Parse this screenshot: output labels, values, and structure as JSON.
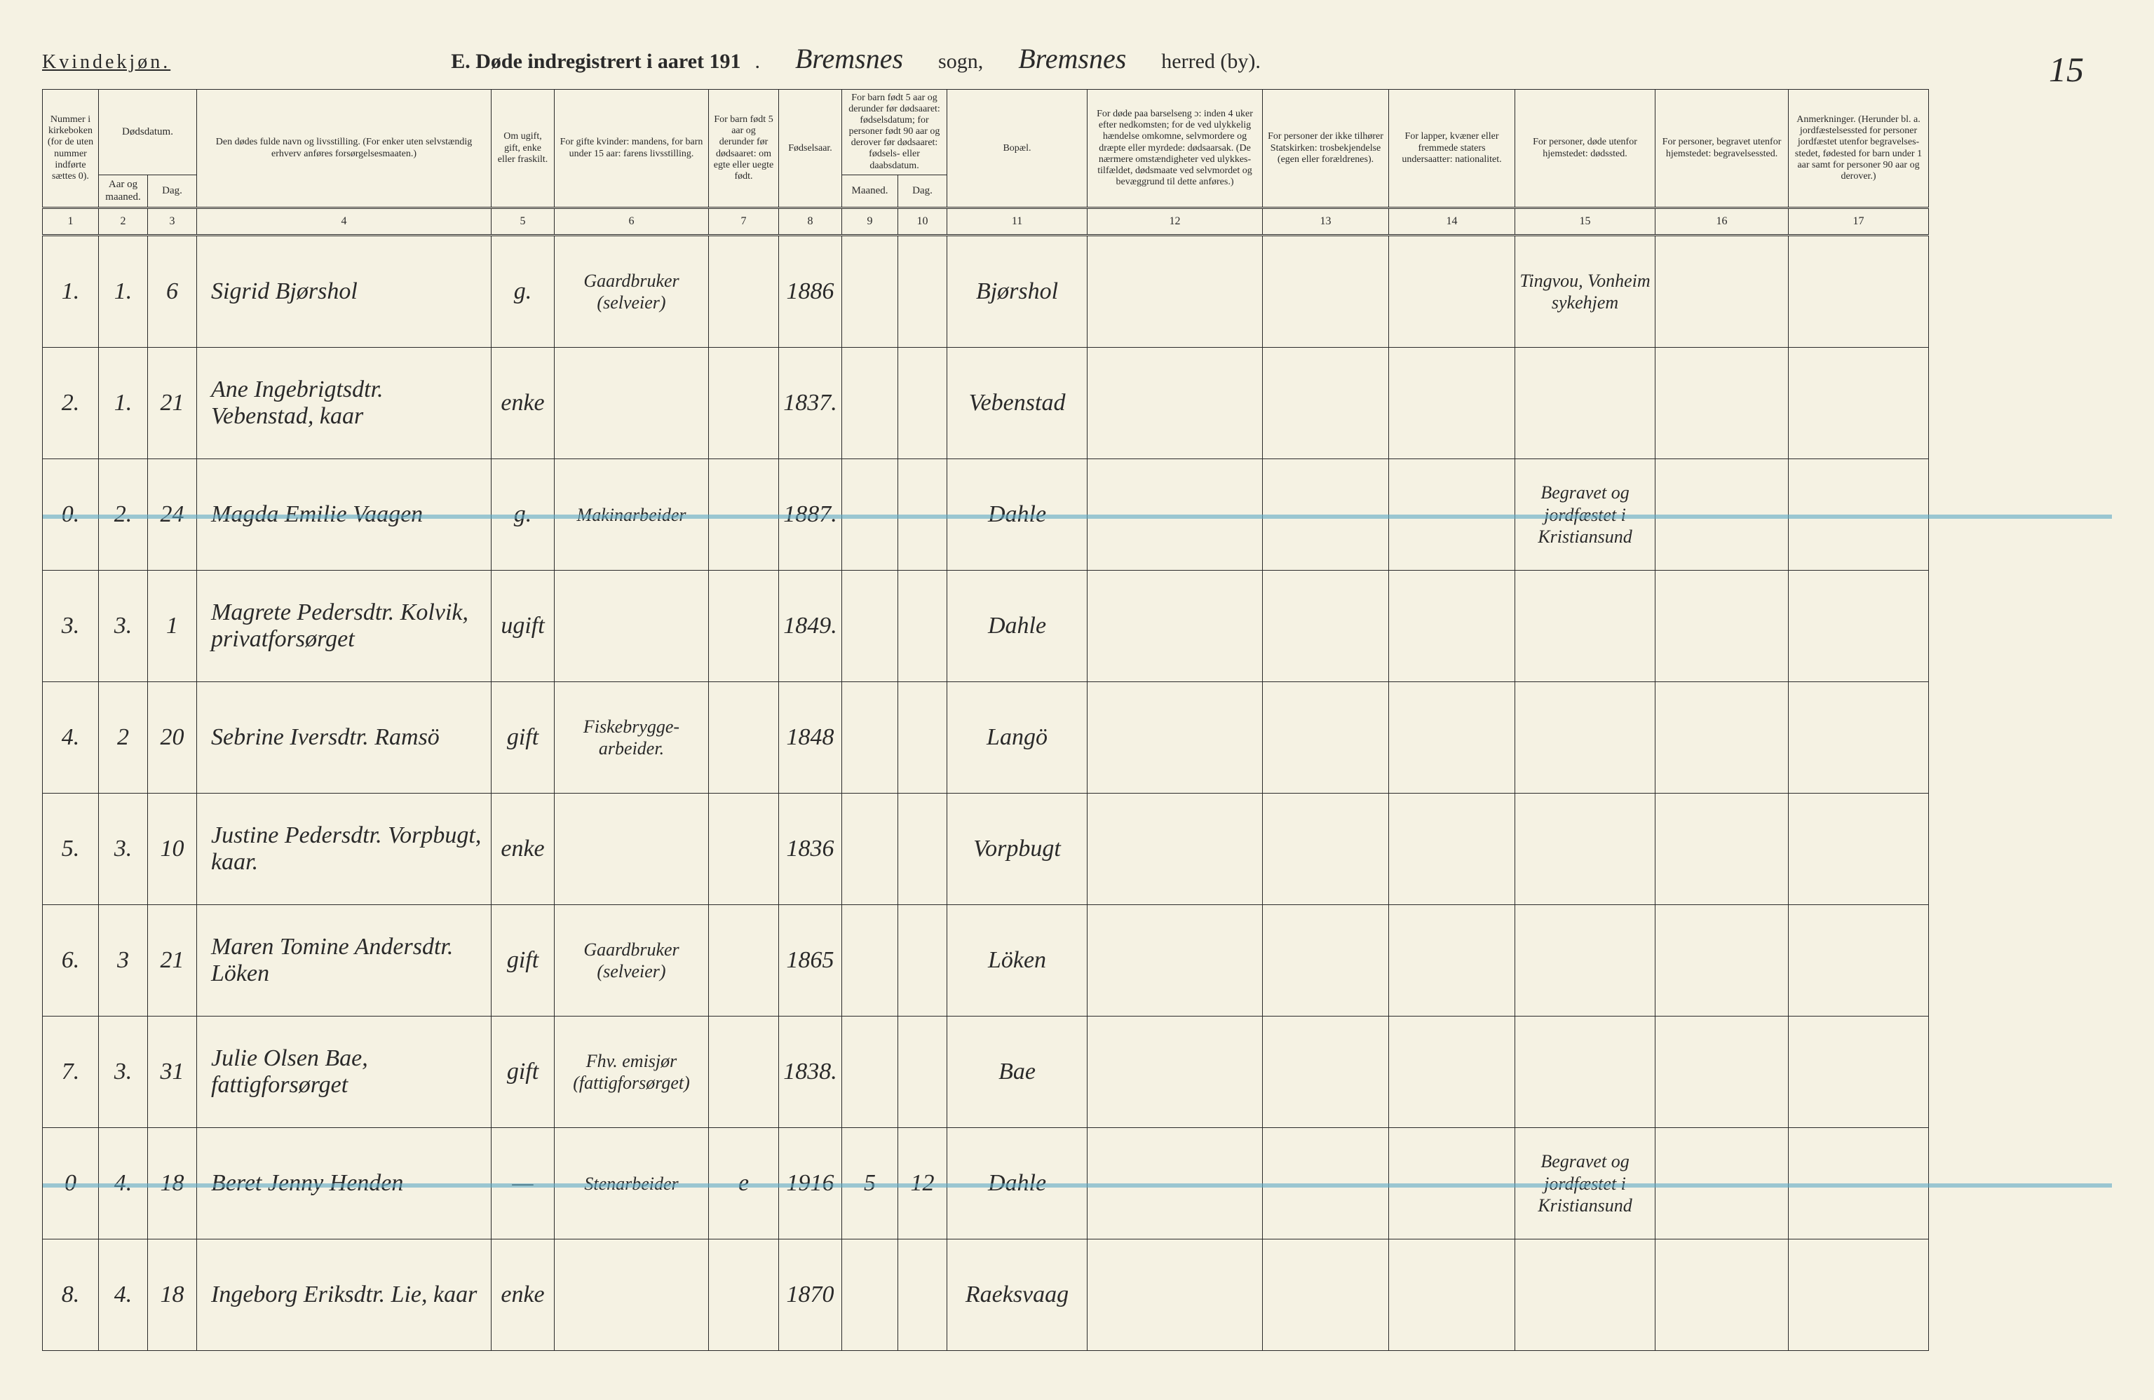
{
  "header": {
    "gender": "Kvindekjøn.",
    "title_prefix": "E.  Døde indregistrert i aaret 191",
    "dot": ".",
    "sogn_name": "Bremsnes",
    "sogn_label": "sogn,",
    "herred_name": "Bremsnes",
    "herred_label": "herred (by).",
    "page_number": "15"
  },
  "columns": {
    "c1": "Nummer i kirke­boken (for de uten nummer indførte sættes 0).",
    "c2_group": "Dødsdatum.",
    "c2": "Aar og maaned.",
    "c3": "Dag.",
    "c4": "Den dødes fulde navn og livsstilling.\n(For enker uten selvstændig erhverv anføres forsørgelsesmaaten.)",
    "c5": "Om ugift, gift, enke eller fraskilt.",
    "c6": "For gifte kvinder: mandens, for barn under 15 aar: farens livsstilling.",
    "c7": "For barn født 5 aar og derunder før døds­aaret: om egte eller uegte født.",
    "c8": "Fødsels­aar.",
    "c9_group": "For barn født 5 aar og der­under før dødsaaret: fødselsdatum; for personer født 90 aar og derover før dødsaaret: fødsels- eller daabsdatum.",
    "c9": "Maaned.",
    "c10": "Dag.",
    "c11": "Bopæl.",
    "c12": "For døde paa barselseng ɔ: inden 4 uker efter nedkomsten; for de ved ulykkelig hændelse omkomne, selvmordere og dræpte eller myrdede: dødsaarsak. (De nærmere omstæn­digheter ved ulykkes­tilfældet, dødsmaate ved selvmordet og bevæggrund til dette anføres.)",
    "c13": "For personer der ikke tilhører Statskirken: trosbekjendelse (egen eller forældrenes).",
    "c14": "For lapper, kvæner eller fremmede staters undersaatter: nationalitet.",
    "c15": "For personer, døde utenfor hjemstedet: dødssted.",
    "c16": "For personer, begravet utenfor hjemstedet: begravelsessted.",
    "c17": "Anmerkninger. (Herunder bl. a. jordfæstelsessted for personer jordfæstet utenfor begravelses­stedet, fødested for barn under 1 aar samt for personer 90 aar og derover.)"
  },
  "colnums": [
    "1",
    "2",
    "3",
    "4",
    "5",
    "6",
    "7",
    "8",
    "9",
    "10",
    "11",
    "12",
    "13",
    "14",
    "15",
    "16",
    "17"
  ],
  "rows": [
    {
      "num": "1.",
      "mon": "1.",
      "day": "6",
      "name": "Sigrid Bjørshol",
      "status": "g.",
      "spouse": "Gaardbruker (selveier)",
      "egte": "",
      "year": "1886",
      "bm": "",
      "bd": "",
      "place": "Bjørshol",
      "cause": "",
      "rel": "",
      "nat": "",
      "dsted": "Tingvou, Vonheim sykehjem",
      "beg": "",
      "anm": "",
      "struck": false
    },
    {
      "num": "2.",
      "mon": "1.",
      "day": "21",
      "name": "Ane Ingebrigtsdtr. Vebenstad, kaar",
      "status": "enke",
      "spouse": "",
      "egte": "",
      "year": "1837.",
      "bm": "",
      "bd": "",
      "place": "Vebenstad",
      "cause": "",
      "rel": "",
      "nat": "",
      "dsted": "",
      "beg": "",
      "anm": "",
      "struck": false
    },
    {
      "num": "0.",
      "mon": "2.",
      "day": "24",
      "name": "Magda Emilie Vaagen",
      "status": "g.",
      "spouse": "Makinarbeider",
      "egte": "",
      "year": "1887.",
      "bm": "",
      "bd": "",
      "place": "Dahle",
      "cause": "",
      "rel": "",
      "nat": "",
      "dsted": "Begravet og jordfæstet i Kristiansund",
      "beg": "",
      "anm": "",
      "struck": true
    },
    {
      "num": "3.",
      "mon": "3.",
      "day": "1",
      "name": "Magrete Pedersdtr. Kolvik, privatforsørget",
      "status": "ugift",
      "spouse": "",
      "egte": "",
      "year": "1849.",
      "bm": "",
      "bd": "",
      "place": "Dahle",
      "cause": "",
      "rel": "",
      "nat": "",
      "dsted": "",
      "beg": "",
      "anm": "",
      "struck": false
    },
    {
      "num": "4.",
      "mon": "2",
      "day": "20",
      "name": "Sebrine Iversdtr. Ramsö",
      "status": "gift",
      "spouse": "Fiskebrygge-arbeider.",
      "egte": "",
      "year": "1848",
      "bm": "",
      "bd": "",
      "place": "Langö",
      "cause": "",
      "rel": "",
      "nat": "",
      "dsted": "",
      "beg": "",
      "anm": "",
      "struck": false
    },
    {
      "num": "5.",
      "mon": "3.",
      "day": "10",
      "name": "Justine Pedersdtr. Vorpbugt, kaar.",
      "status": "enke",
      "spouse": "",
      "egte": "",
      "year": "1836",
      "bm": "",
      "bd": "",
      "place": "Vorpbugt",
      "cause": "",
      "rel": "",
      "nat": "",
      "dsted": "",
      "beg": "",
      "anm": "",
      "struck": false
    },
    {
      "num": "6.",
      "mon": "3",
      "day": "21",
      "name": "Maren Tomine Andersdtr. Löken",
      "status": "gift",
      "spouse": "Gaardbruker (selveier)",
      "egte": "",
      "year": "1865",
      "bm": "",
      "bd": "",
      "place": "Löken",
      "cause": "",
      "rel": "",
      "nat": "",
      "dsted": "",
      "beg": "",
      "anm": "",
      "struck": false
    },
    {
      "num": "7.",
      "mon": "3.",
      "day": "31",
      "name": "Julie Olsen Bae, fattigforsørget",
      "status": "gift",
      "spouse": "Fhv. emisjør (fattigforsørget)",
      "egte": "",
      "year": "1838.",
      "bm": "",
      "bd": "",
      "place": "Bae",
      "cause": "",
      "rel": "",
      "nat": "",
      "dsted": "",
      "beg": "",
      "anm": "",
      "struck": false
    },
    {
      "num": "0",
      "mon": "4.",
      "day": "18",
      "name": "Beret Jenny Henden",
      "status": "—",
      "spouse": "Stenarbeider",
      "egte": "e",
      "year": "1916",
      "bm": "5",
      "bd": "12",
      "place": "Dahle",
      "cause": "",
      "rel": "",
      "nat": "",
      "dsted": "Begravet og jordfæstet i Kristiansund",
      "beg": "",
      "anm": "",
      "struck": true
    },
    {
      "num": "8.",
      "mon": "4.",
      "day": "18",
      "name": "Ingeborg Eriksdtr. Lie, kaar",
      "status": "enke",
      "spouse": "",
      "egte": "",
      "year": "1870",
      "bm": "",
      "bd": "",
      "place": "Raeksvaag",
      "cause": "",
      "rel": "",
      "nat": "",
      "dsted": "",
      "beg": "",
      "anm": "",
      "struck": false
    }
  ],
  "style": {
    "bg": "#f5f2e3",
    "ink": "#2a2a2a",
    "strike": "#5da8c4"
  }
}
